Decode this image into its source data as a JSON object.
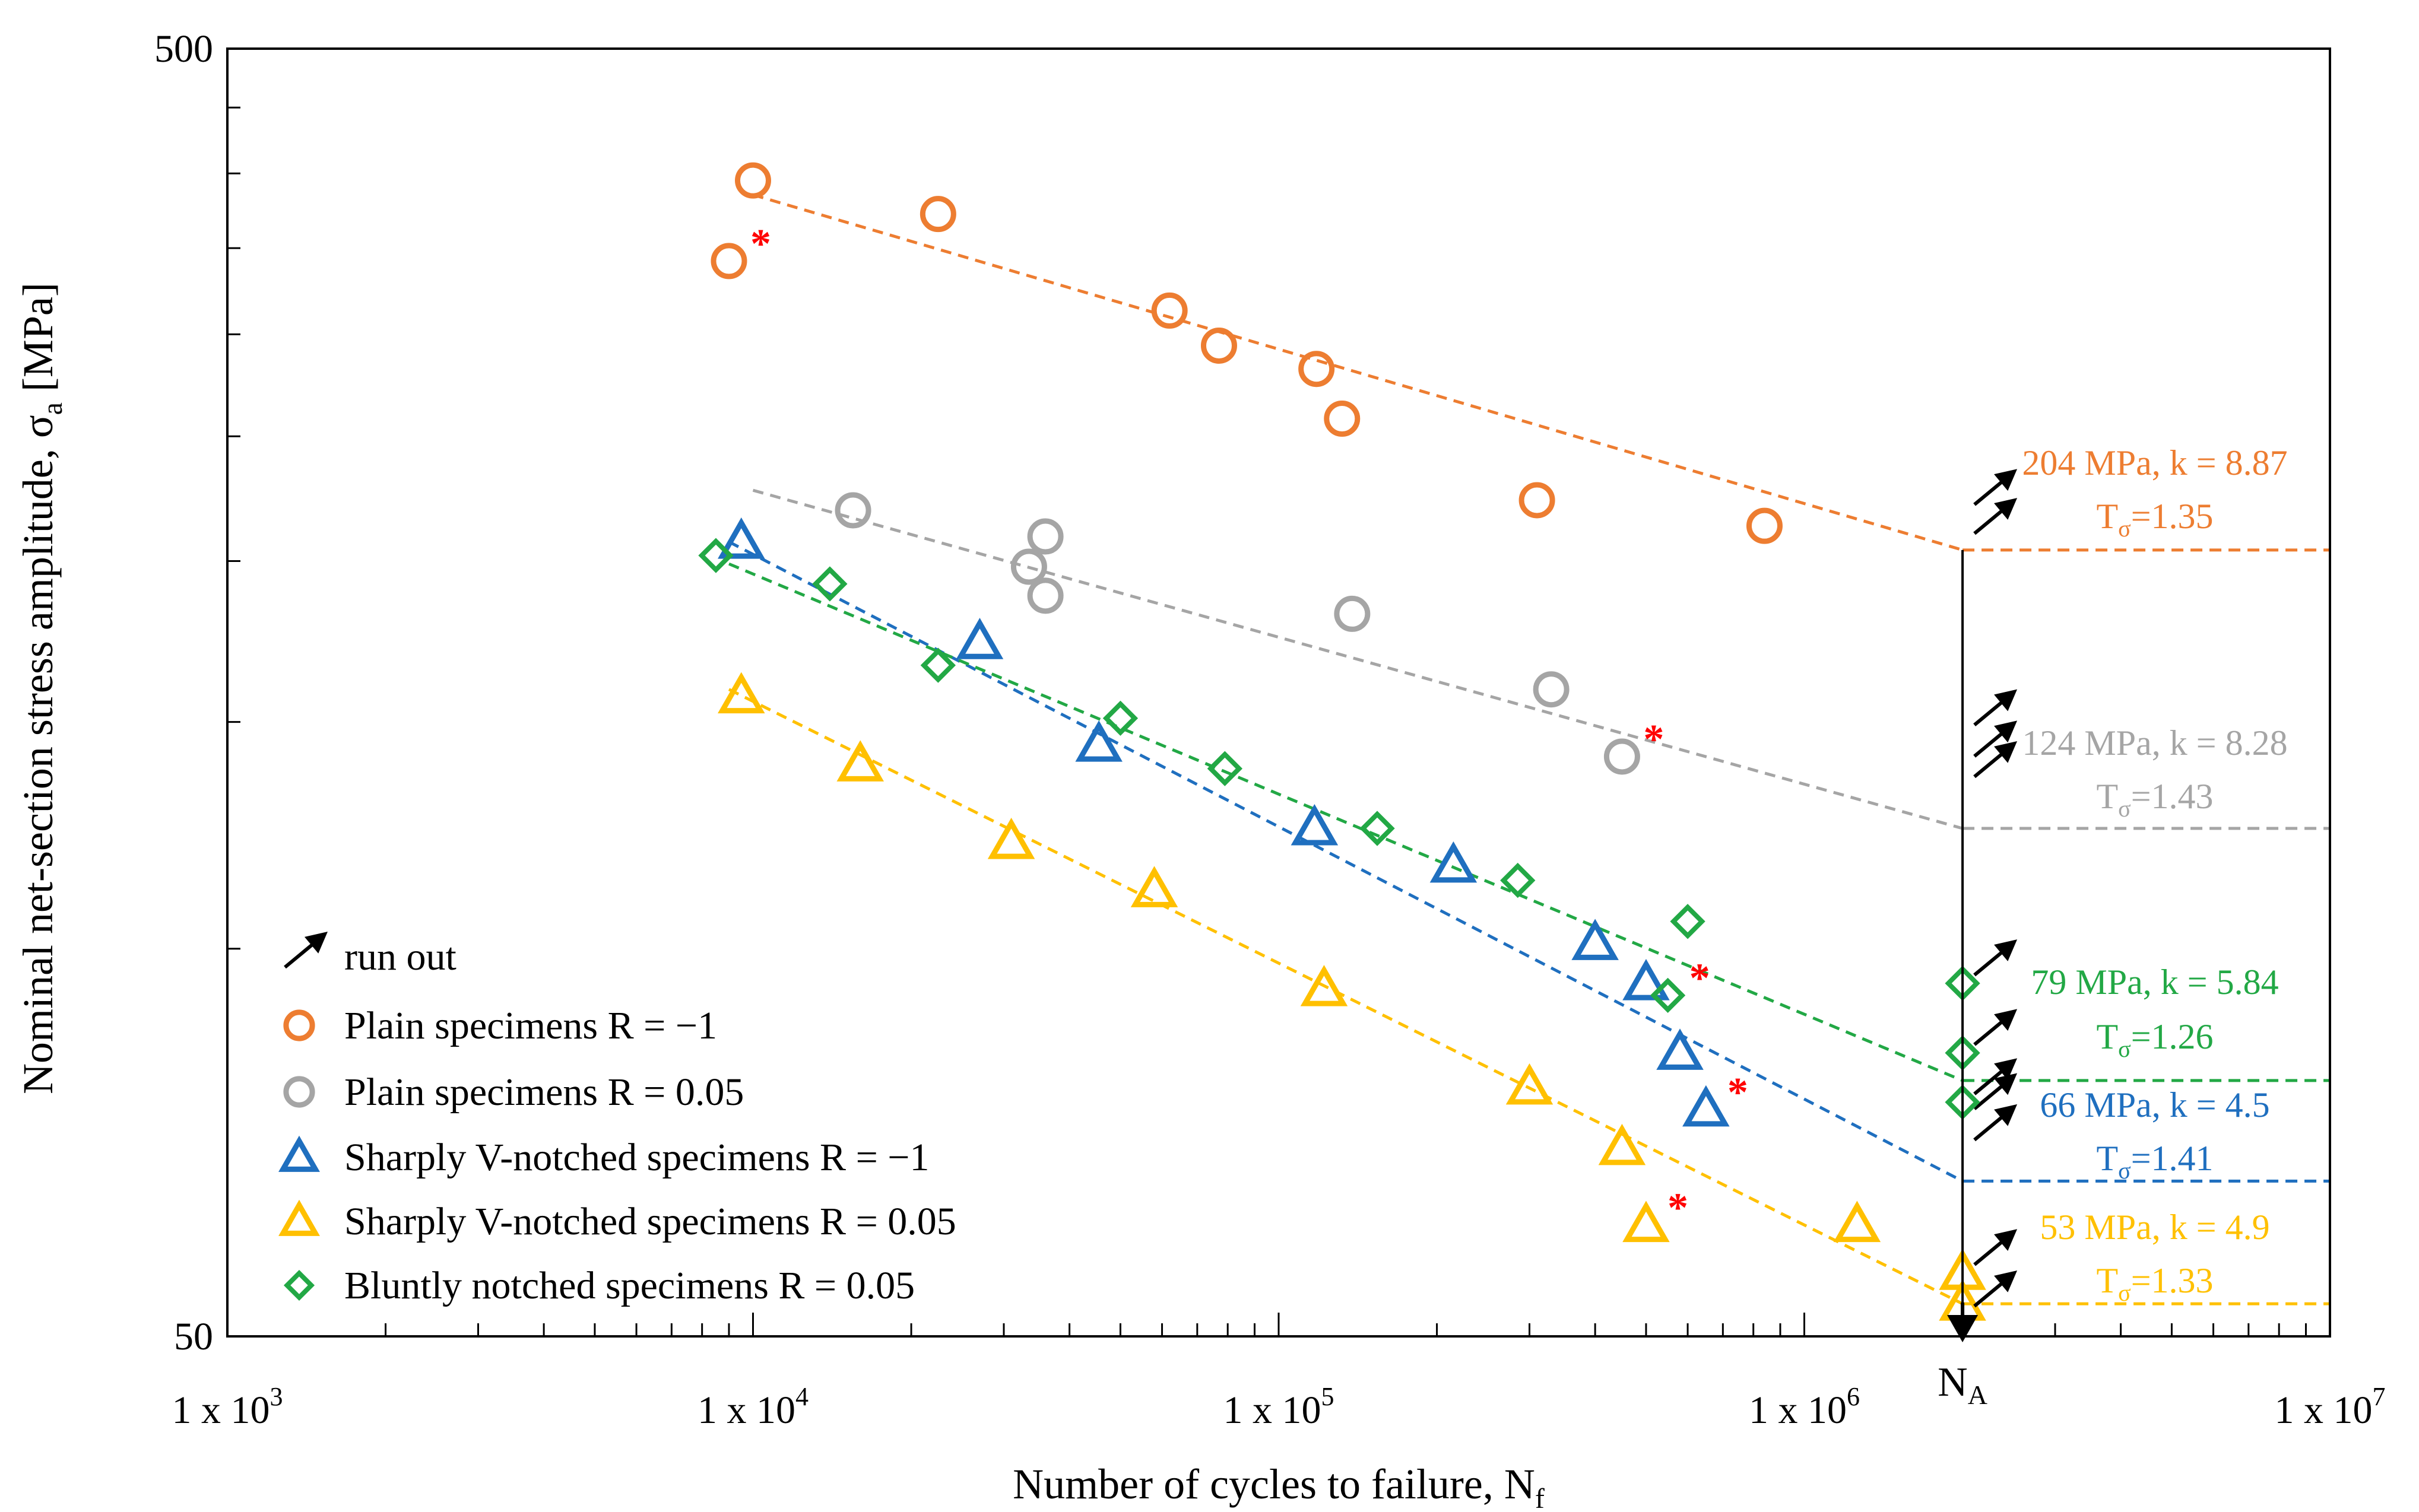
{
  "chart_data": {
    "type": "scatter",
    "xscale": "log",
    "yscale": "log",
    "xlim": [
      1000,
      10000000
    ],
    "ylim": [
      50,
      500
    ],
    "xlabel": "Number of cycles to failure, N",
    "xlabel_sub": "f",
    "ylabel": "Nominal net-section stress amplitude, σ",
    "ylabel_sub": "a",
    "ylabel_unit": " [MPa]",
    "xticks": [
      {
        "value": 1000,
        "base": "1 x 10",
        "exp": "3"
      },
      {
        "value": 10000,
        "base": "1 x 10",
        "exp": "4"
      },
      {
        "value": 100000,
        "base": "1 x 10",
        "exp": "5"
      },
      {
        "value": 1000000,
        "base": "1 x 10",
        "exp": "6"
      },
      {
        "value": 10000000,
        "base": "1 x 10",
        "exp": "7"
      }
    ],
    "yticks": [
      {
        "value": 500,
        "label": "500"
      },
      {
        "value": 50,
        "label": "50"
      }
    ],
    "NA": {
      "value": 2000000,
      "label": "N",
      "sub": "A"
    },
    "series": [
      {
        "name": "Plain specimens R =  −1",
        "marker": "circle",
        "color": "#ED7D31",
        "trendline": {
          "from": [
            10000,
            385
          ],
          "to": [
            2000000,
            204
          ]
        },
        "points": [
          [
            9000,
            342
          ],
          [
            10000,
            395
          ],
          [
            22500,
            372
          ],
          [
            62000,
            313
          ],
          [
            77000,
            294
          ],
          [
            118000,
            282
          ],
          [
            132000,
            258
          ],
          [
            310000,
            223
          ],
          [
            840000,
            213
          ]
        ],
        "failed_at_threshold": [
          [
            9000,
            342
          ]
        ],
        "runouts": [
          [
            2000000,
            218
          ],
          [
            2000000,
            207
          ]
        ],
        "endurance": {
          "value_label": "204 MPa, k = 8.87",
          "t_label": "T",
          "t_sub": "σ",
          "t_value": "=1.35",
          "level": 204
        }
      },
      {
        "name": "Plain specimens R = 0.05",
        "marker": "circle",
        "color": "#A5A5A5",
        "trendline": {
          "from": [
            10000,
            227
          ],
          "to": [
            2000000,
            124
          ]
        },
        "points": [
          [
            15500,
            219
          ],
          [
            33500,
            198
          ],
          [
            36000,
            209
          ],
          [
            36000,
            188
          ],
          [
            138000,
            182
          ],
          [
            330000,
            159
          ],
          [
            450000,
            141
          ]
        ],
        "failed_at_threshold": [
          [
            450000,
            141
          ]
        ],
        "runouts": [
          [
            2000000,
            147
          ],
          [
            2000000,
            139
          ],
          [
            2000000,
            134
          ]
        ],
        "endurance": {
          "value_label": "124 MPa, k = 8.28",
          "t_label": "T",
          "t_sub": "σ",
          "t_value": "=1.43",
          "level": 124
        }
      },
      {
        "name": "Sharply V-notched specimens R = −1",
        "marker": "triangle",
        "color": "#1F6FBF",
        "trendline": {
          "from": [
            9000,
            207
          ],
          "to": [
            2000000,
            66
          ]
        },
        "points": [
          [
            9500,
            207
          ],
          [
            27000,
            173
          ],
          [
            45500,
            144
          ],
          [
            117000,
            124
          ],
          [
            215000,
            116
          ],
          [
            400000,
            101
          ],
          [
            500000,
            94
          ],
          [
            580000,
            83
          ],
          [
            650000,
            75
          ]
        ],
        "failed_at_threshold": [
          [
            650000,
            75
          ]
        ],
        "runouts": [
          [
            2000000,
            74
          ],
          [
            2000000,
            70
          ]
        ],
        "endurance": {
          "value_label": "66 MPa, k = 4.5",
          "t_label": "T",
          "t_sub": "σ",
          "t_value": "=1.41",
          "level": 66
        }
      },
      {
        "name": "Sharply V-notched specimens R = 0.05",
        "marker": "triangle",
        "color": "#FFC000",
        "trendline": {
          "from": [
            9000,
            159
          ],
          "to": [
            2000000,
            53
          ]
        },
        "points": [
          [
            9500,
            157
          ],
          [
            16000,
            139
          ],
          [
            31000,
            121
          ],
          [
            58000,
            111
          ],
          [
            122000,
            93
          ],
          [
            300000,
            78
          ],
          [
            450000,
            70
          ],
          [
            500000,
            61
          ],
          [
            1260000,
            61
          ],
          [
            2000000,
            56
          ],
          [
            2000000,
            53
          ]
        ],
        "failed_at_threshold": [
          [
            500000,
            61
          ]
        ],
        "runouts": [
          [
            2000000,
            56
          ],
          [
            2000000,
            52
          ]
        ],
        "endurance": {
          "value_label": "53 MPa, k = 4.9",
          "t_label": "T",
          "t_sub": "σ",
          "t_value": "=1.33",
          "level": 53
        }
      },
      {
        "name": "Bluntly notched specimens R = 0.05",
        "marker": "diamond",
        "color": "#22A845",
        "trendline": {
          "from": [
            9000,
            199
          ],
          "to": [
            2000000,
            79
          ]
        },
        "points": [
          [
            8500,
            202
          ],
          [
            14000,
            192
          ],
          [
            22500,
            166
          ],
          [
            50000,
            151
          ],
          [
            79000,
            138
          ],
          [
            154000,
            124
          ],
          [
            285000,
            113
          ],
          [
            550000,
            92
          ],
          [
            600000,
            105
          ],
          [
            2000000,
            94
          ],
          [
            2000000,
            83
          ],
          [
            2000000,
            76
          ]
        ],
        "failed_at_threshold": [
          [
            550000,
            92
          ]
        ],
        "runouts": [
          [
            2000000,
            94
          ],
          [
            2000000,
            83
          ],
          [
            2000000,
            76
          ]
        ],
        "endurance": {
          "value_label": "79 MPa, k = 5.84",
          "t_label": "T",
          "t_sub": "σ",
          "t_value": "=1.26",
          "level": 79
        }
      }
    ],
    "legend": {
      "runout_label": "run out",
      "placement": "bottom-left"
    },
    "failure_marker": "*",
    "failure_marker_color": "#FF0000",
    "runout_arrow_color": "#000000"
  }
}
